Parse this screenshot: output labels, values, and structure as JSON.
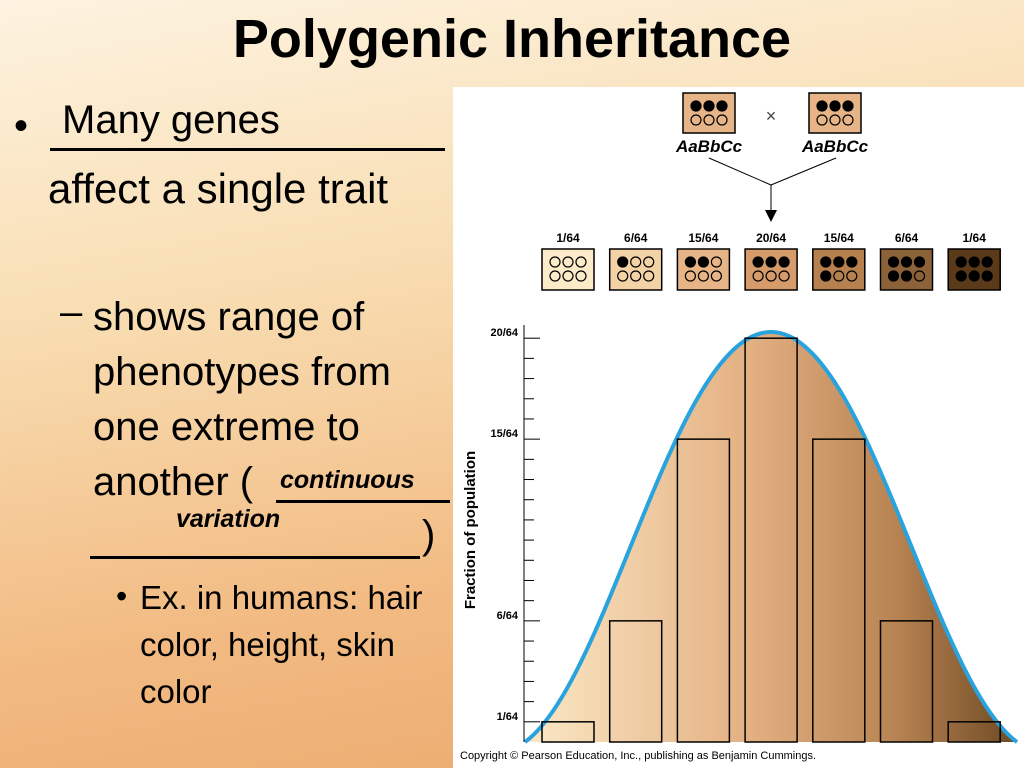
{
  "title": "Polygenic Inheritance",
  "bullet": {
    "answer": "Many genes",
    "text": "affect a single trait",
    "sub": {
      "text": "shows range of phenotypes from one extreme to another (",
      "answer": [
        "continuous",
        "variation"
      ],
      "close": ")",
      "sub": {
        "text": "Ex. in humans: hair color, height, skin color"
      }
    }
  },
  "figure": {
    "parents": [
      {
        "genotype": "AaBbCc"
      },
      {
        "genotype": "AaBbCc"
      }
    ],
    "cross": "×",
    "offspring": [
      {
        "dark_alleles": 0,
        "color": "#fcebc9"
      },
      {
        "dark_alleles": 1,
        "color": "#f3d2a6"
      },
      {
        "dark_alleles": 2,
        "color": "#e6b487"
      },
      {
        "dark_alleles": 3,
        "color": "#d59b6b"
      },
      {
        "dark_alleles": 4,
        "color": "#b6814f"
      },
      {
        "dark_alleles": 5,
        "color": "#8c6238"
      },
      {
        "dark_alleles": 6,
        "color": "#5b3a1a"
      }
    ],
    "chart_data": {
      "type": "bar",
      "y_label": "Fraction of population",
      "values": [
        1,
        6,
        15,
        20,
        15,
        6,
        1
      ],
      "value_labels": [
        "1/64",
        "6/64",
        "15/64",
        "20/64",
        "15/64",
        "6/64",
        "1/64"
      ],
      "ylim": [
        0,
        21
      ],
      "yticks": [
        {
          "value": 1,
          "label": "1/64"
        },
        {
          "value": 6,
          "label": "6/64"
        },
        {
          "value": 15,
          "label": "15/64"
        },
        {
          "value": 20,
          "label": "20/64"
        }
      ],
      "minor_yticks": [
        2,
        3,
        4,
        5,
        7,
        8,
        9,
        10,
        11,
        12,
        13,
        14,
        16,
        17,
        18,
        19
      ]
    },
    "copyright": "Copyright © Pearson Education, Inc., publishing as Benjamin Cummings."
  }
}
